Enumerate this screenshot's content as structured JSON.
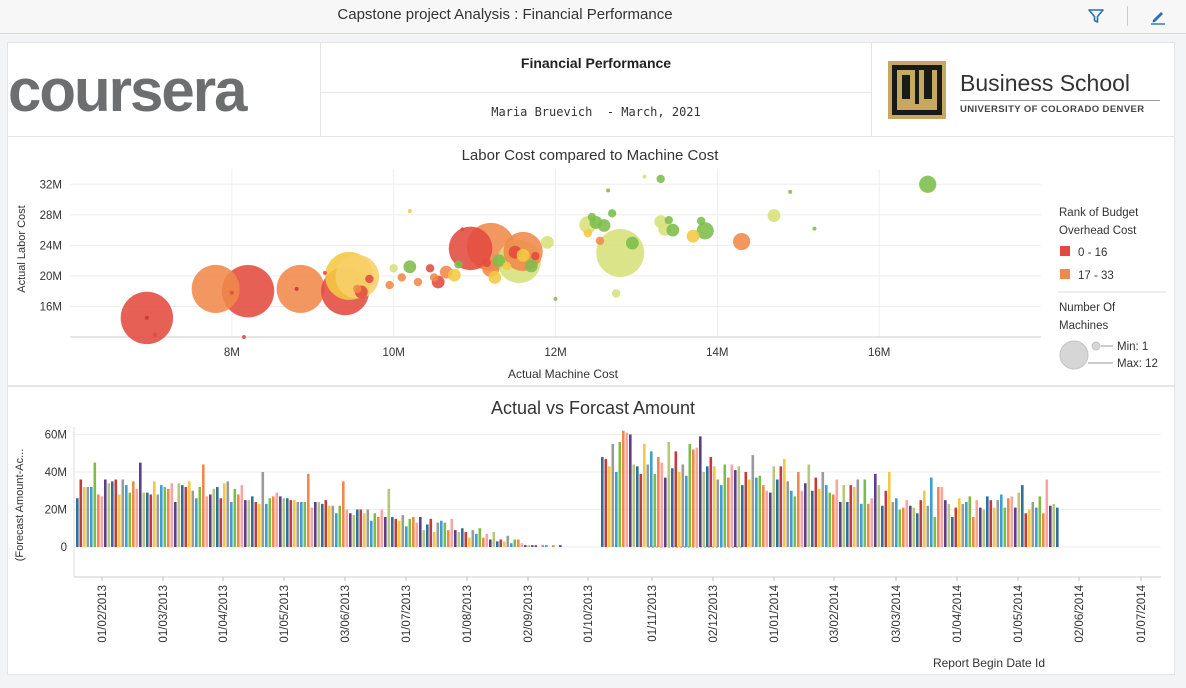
{
  "toolbar": {
    "title": "Capstone project Analysis : Financial Performance"
  },
  "header": {
    "title": "Financial Performance",
    "subtitle": "Maria Bruevich  - March, 2021",
    "left_logo": "coursera",
    "right_logo_main": "Business School",
    "right_logo_sub": "UNIVERSITY OF COLORADO DENVER"
  },
  "bubble": {
    "title": "Labor Cost compared to Machine Cost",
    "xlabel": "Actual Machine Cost",
    "ylabel": "Actual Labor Cost",
    "xticks": [
      "8M",
      "10M",
      "12M",
      "14M",
      "16M"
    ],
    "yticks": [
      "16M",
      "20M",
      "24M",
      "28M",
      "32M"
    ],
    "legend": {
      "color_title_1": "Rank of Budget",
      "color_title_2": "Overhead Cost",
      "items": [
        {
          "label": "0 - 16",
          "color": "#e34a3f"
        },
        {
          "label": "17 - 33",
          "color": "#f0894a"
        }
      ],
      "size_title_1": "Number Of",
      "size_title_2": "Machines",
      "min_label": "Min: 1",
      "max_label": "Max: 12"
    }
  },
  "bars": {
    "title": "Actual vs Forcast Amount",
    "ylabel": "(Forecast Amount-Ac...",
    "xlabel": "Report Begin Date Id",
    "yticks": [
      "0",
      "20M",
      "40M",
      "60M"
    ],
    "xticks": [
      "01/02/2013",
      "01/03/2013",
      "01/04/2013",
      "01/05/2013",
      "03/06/2013",
      "01/07/2013",
      "01/08/2013",
      "02/09/2013",
      "01/10/2013",
      "01/11/2013",
      "02/12/2013",
      "01/01/2014",
      "03/02/2014",
      "03/03/2014",
      "01/04/2014",
      "01/05/2014",
      "02/06/2014",
      "01/07/2014"
    ]
  },
  "chart_data": [
    {
      "type": "scatter",
      "title": "Labor Cost compared to Machine Cost",
      "xlabel": "Actual Machine Cost",
      "ylabel": "Actual Labor Cost",
      "xlim": [
        6000000,
        18000000
      ],
      "ylim": [
        12000000,
        34000000
      ],
      "size_legend": {
        "min": 1,
        "max": 12
      },
      "points": [
        [
          6.95,
          14.5,
          12,
          "#e34a3f"
        ],
        [
          6.95,
          14.5,
          1,
          "#cc3333"
        ],
        [
          7.05,
          12.3,
          1,
          "#e34a3f"
        ],
        [
          7.8,
          18.3,
          11,
          "#f0894a"
        ],
        [
          8.0,
          17.8,
          1,
          "#e34a3f"
        ],
        [
          8.2,
          18.0,
          12,
          "#e34a3f"
        ],
        [
          8.15,
          12.0,
          1,
          "#e34a3f"
        ],
        [
          8.8,
          18.3,
          1,
          "#cc3333"
        ],
        [
          8.85,
          18.3,
          11,
          "#f0894a"
        ],
        [
          9.4,
          18.0,
          11,
          "#e34a3f"
        ],
        [
          9.45,
          20.0,
          11,
          "#f5c842"
        ],
        [
          9.55,
          19.9,
          10,
          "#f7d06a"
        ],
        [
          9.6,
          17.9,
          3,
          "#e34a3f"
        ],
        [
          9.7,
          19.6,
          2,
          "#e34a3f"
        ],
        [
          9.55,
          18.3,
          2,
          "#f0894a"
        ],
        [
          9.95,
          18.8,
          2,
          "#f0894a"
        ],
        [
          9.15,
          20.4,
          1,
          "#e34a3f"
        ],
        [
          10.0,
          21.0,
          2,
          "#d7e07a"
        ],
        [
          10.1,
          19.8,
          2,
          "#f0894a"
        ],
        [
          10.2,
          21.2,
          3,
          "#7cbd4a"
        ],
        [
          10.2,
          28.5,
          1,
          "#f5c842"
        ],
        [
          10.3,
          19.2,
          2,
          "#f0894a"
        ],
        [
          10.45,
          21.0,
          2,
          "#e34a3f"
        ],
        [
          10.5,
          19.8,
          2,
          "#f0894a"
        ],
        [
          10.55,
          19.2,
          3,
          "#e34a3f"
        ],
        [
          10.65,
          20.5,
          3,
          "#f0894a"
        ],
        [
          10.75,
          20.1,
          3,
          "#f5c842"
        ],
        [
          10.8,
          21.5,
          2,
          "#7cbd4a"
        ],
        [
          10.85,
          26.1,
          1,
          "#e34a3f"
        ],
        [
          10.95,
          23.6,
          10,
          "#e34a3f"
        ],
        [
          11.15,
          21.7,
          2,
          "#e34a3f"
        ],
        [
          11.2,
          23.8,
          11,
          "#f0894a"
        ],
        [
          11.2,
          21.0,
          4,
          "#f0894a"
        ],
        [
          11.25,
          19.8,
          3,
          "#f5c842"
        ],
        [
          11.3,
          22.0,
          3,
          "#7cbd4a"
        ],
        [
          11.4,
          21.3,
          2,
          "#f5c842"
        ],
        [
          11.5,
          23.1,
          3,
          "#e34a3f"
        ],
        [
          11.55,
          21.9,
          10,
          "#d7e07a"
        ],
        [
          11.6,
          23.2,
          9,
          "#f0894a"
        ],
        [
          11.6,
          22.7,
          3,
          "#f5c842"
        ],
        [
          11.7,
          21.3,
          3,
          "#7cbd4a"
        ],
        [
          11.75,
          22.6,
          2,
          "#e34a3f"
        ],
        [
          11.9,
          24.4,
          3,
          "#d7e07a"
        ],
        [
          12.0,
          17.0,
          1,
          "#7cbd4a"
        ],
        [
          12.4,
          26.7,
          4,
          "#d7e07a"
        ],
        [
          12.4,
          25.6,
          2,
          "#f5c842"
        ],
        [
          12.45,
          27.7,
          2,
          "#7cbd4a"
        ],
        [
          12.5,
          27.0,
          3,
          "#7cbd4a"
        ],
        [
          12.55,
          24.6,
          2,
          "#f0894a"
        ],
        [
          12.6,
          26.6,
          3,
          "#7cbd4a"
        ],
        [
          12.65,
          31.2,
          1,
          "#7cbd4a"
        ],
        [
          12.7,
          28.2,
          2,
          "#7cbd4a"
        ],
        [
          12.75,
          17.7,
          2,
          "#d7e07a"
        ],
        [
          12.8,
          23.0,
          11,
          "#d7e07a"
        ],
        [
          12.95,
          24.3,
          3,
          "#7cbd4a"
        ],
        [
          13.1,
          33.0,
          1,
          "#d7e07a"
        ],
        [
          13.3,
          32.7,
          2,
          "#7cbd4a"
        ],
        [
          13.3,
          27.1,
          3,
          "#d7e07a"
        ],
        [
          13.35,
          26.1,
          3,
          "#d7e07a"
        ],
        [
          13.45,
          26.0,
          3,
          "#7cbd4a"
        ],
        [
          13.4,
          27.3,
          2,
          "#7cbd4a"
        ],
        [
          13.7,
          25.2,
          3,
          "#f5c842"
        ],
        [
          13.8,
          27.2,
          2,
          "#7cbd4a"
        ],
        [
          13.85,
          25.9,
          4,
          "#7cbd4a"
        ],
        [
          14.3,
          24.5,
          4,
          "#f0894a"
        ],
        [
          14.7,
          27.9,
          3,
          "#d7e07a"
        ],
        [
          14.9,
          31.0,
          1,
          "#7cbd4a"
        ],
        [
          15.2,
          26.2,
          1,
          "#7cbd4a"
        ],
        [
          16.6,
          32.0,
          4,
          "#7cbd4a"
        ]
      ]
    },
    {
      "type": "bar",
      "title": "Actual vs Forcast Amount",
      "xlabel": "Report Begin Date Id",
      "ylabel": "(Forecast Amount-Ac...",
      "ylim": [
        -16,
        64
      ],
      "palette": [
        "#2e6f9e",
        "#c8393b",
        "#f5c842",
        "#9a9a9a",
        "#3a9fd3",
        "#7cbd4a",
        "#f0894a",
        "#f5a6a2",
        "#5c3e8a",
        "#b5c77a"
      ],
      "values": [
        26,
        36,
        32,
        32,
        32,
        45,
        28,
        27,
        36,
        34,
        35,
        36,
        28,
        36,
        33,
        29,
        35,
        31,
        45,
        29,
        29,
        28,
        35,
        28,
        33,
        32,
        31,
        34,
        24,
        34,
        33,
        32,
        35,
        30,
        26,
        32,
        44,
        27,
        28,
        31,
        32,
        26,
        34,
        35,
        24,
        31,
        28,
        33,
        25,
        25,
        27,
        24,
        23,
        40,
        23,
        26,
        27,
        29,
        27,
        26,
        26,
        25,
        25,
        24,
        24,
        24,
        39,
        21,
        24,
        24,
        23,
        25,
        22,
        22,
        18,
        22,
        35,
        20,
        18,
        17,
        20,
        20,
        18,
        20,
        14,
        18,
        16,
        20,
        16,
        31,
        16,
        15,
        14,
        17,
        11,
        15,
        16,
        13,
        16,
        9,
        12,
        15,
        8,
        13,
        14,
        13,
        9,
        15,
        9,
        8,
        10,
        8,
        5,
        9,
        7,
        10,
        5,
        7,
        4,
        8,
        3,
        4,
        3,
        6,
        2,
        4,
        4,
        2,
        1,
        1,
        1,
        1,
        0,
        1,
        1,
        0,
        1,
        0,
        1,
        0,
        0,
        0,
        0,
        0,
        0,
        0,
        0,
        0,
        0,
        0,
        48,
        47,
        43,
        55,
        40,
        56,
        62,
        61,
        60,
        44,
        43,
        39,
        55,
        44,
        51,
        39,
        48,
        45,
        37,
        56,
        42,
        51,
        40,
        44,
        38,
        55,
        52,
        53,
        59,
        40,
        43,
        48,
        43,
        36,
        33,
        44,
        37,
        44,
        41,
        43,
        33,
        40,
        36,
        49,
        37,
        38,
        33,
        30,
        29,
        43,
        36,
        43,
        47,
        35,
        30,
        27,
        40,
        30,
        34,
        44,
        30,
        37,
        31,
        40,
        33,
        29,
        28,
        36,
        24,
        33,
        24,
        33,
        32,
        36,
        23,
        36,
        23,
        26,
        39,
        33,
        22,
        30,
        40,
        24,
        26,
        20,
        21,
        25,
        22,
        21,
        18,
        25,
        30,
        22,
        37,
        16,
        32,
        32,
        25,
        23,
        16,
        21,
        26,
        23,
        24,
        27,
        16,
        25,
        21,
        20,
        27,
        25,
        21,
        25,
        28,
        21,
        26,
        27,
        21,
        29,
        33,
        18,
        20,
        24,
        21,
        27,
        18,
        36,
        22,
        23,
        21
      ]
    }
  ]
}
